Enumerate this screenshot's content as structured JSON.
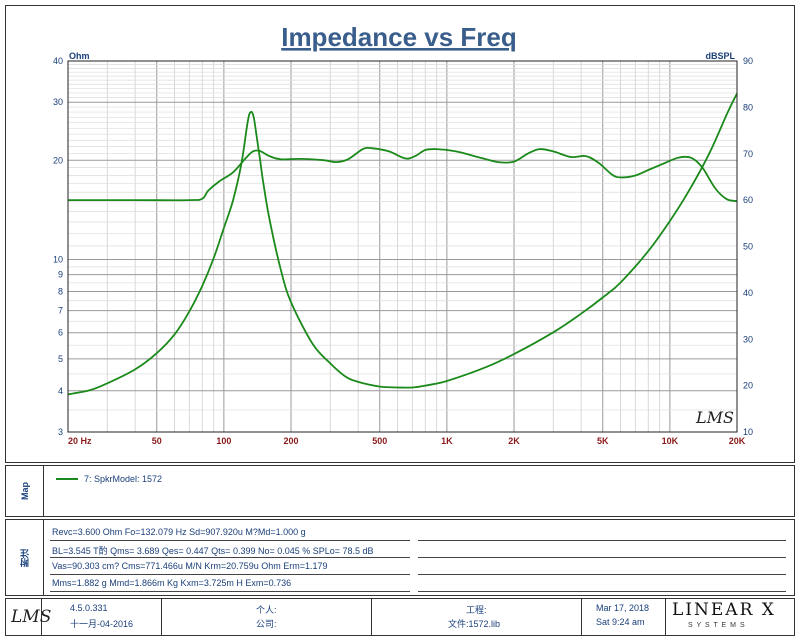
{
  "chart_data": {
    "type": "line",
    "title": "Impedance vs Freq",
    "left_unit": "Ohm",
    "right_unit": "dBSPL",
    "x_scale": "log",
    "xlim": [
      20,
      20000
    ],
    "left_scale": "log",
    "left_ylim": [
      3,
      40
    ],
    "right_ylim": [
      10,
      90
    ],
    "x_ticks": [
      {
        "v": 20,
        "label": "20  Hz"
      },
      {
        "v": 50,
        "label": "50"
      },
      {
        "v": 100,
        "label": "100"
      },
      {
        "v": 200,
        "label": "200"
      },
      {
        "v": 500,
        "label": "500"
      },
      {
        "v": 1000,
        "label": "1K"
      },
      {
        "v": 2000,
        "label": "2K"
      },
      {
        "v": 5000,
        "label": "5K"
      },
      {
        "v": 10000,
        "label": "10K"
      },
      {
        "v": 20000,
        "label": "20K"
      }
    ],
    "left_ticks": [
      {
        "v": 40,
        "label": "40"
      },
      {
        "v": 30,
        "label": "30"
      },
      {
        "v": 20,
        "label": "20"
      },
      {
        "v": 10,
        "label": "10"
      },
      {
        "v": 9,
        "label": "9"
      },
      {
        "v": 8,
        "label": "8"
      },
      {
        "v": 7,
        "label": "7"
      },
      {
        "v": 6,
        "label": "6"
      },
      {
        "v": 5,
        "label": "5"
      },
      {
        "v": 4,
        "label": "4"
      },
      {
        "v": 3,
        "label": "3"
      }
    ],
    "right_ticks": [
      {
        "v": 90,
        "label": "90"
      },
      {
        "v": 80,
        "label": "80"
      },
      {
        "v": 70,
        "label": "70"
      },
      {
        "v": 60,
        "label": "60"
      },
      {
        "v": 50,
        "label": "50"
      },
      {
        "v": 40,
        "label": "40"
      },
      {
        "v": 30,
        "label": "30"
      },
      {
        "v": 20,
        "label": "20"
      },
      {
        "v": 10,
        "label": "10"
      }
    ],
    "grid": true,
    "watermark": "LMS",
    "series": [
      {
        "axis": "right",
        "color": "#1b8a1b",
        "points": [
          [
            20,
            60
          ],
          [
            40,
            60
          ],
          [
            70,
            60
          ],
          [
            80,
            60.3
          ],
          [
            85,
            62
          ],
          [
            95,
            64
          ],
          [
            110,
            66
          ],
          [
            125,
            69
          ],
          [
            135,
            70.5
          ],
          [
            145,
            70.6
          ],
          [
            160,
            69.5
          ],
          [
            180,
            68.8
          ],
          [
            220,
            68.9
          ],
          [
            280,
            68.6
          ],
          [
            320,
            68.2
          ],
          [
            360,
            68.8
          ],
          [
            420,
            71
          ],
          [
            460,
            71.2
          ],
          [
            550,
            70.5
          ],
          [
            650,
            69
          ],
          [
            720,
            69.5
          ],
          [
            800,
            70.8
          ],
          [
            900,
            71
          ],
          [
            1100,
            70.5
          ],
          [
            1400,
            69.2
          ],
          [
            1700,
            68.2
          ],
          [
            2000,
            68.3
          ],
          [
            2300,
            70
          ],
          [
            2600,
            71
          ],
          [
            3000,
            70.5
          ],
          [
            3600,
            69.3
          ],
          [
            4200,
            69.5
          ],
          [
            4800,
            68
          ],
          [
            5500,
            65.5
          ],
          [
            6000,
            64.9
          ],
          [
            7000,
            65.3
          ],
          [
            8000,
            66.5
          ],
          [
            9500,
            68
          ],
          [
            11000,
            69.2
          ],
          [
            12500,
            69.1
          ],
          [
            14000,
            67
          ],
          [
            16000,
            62.5
          ],
          [
            18000,
            60.2
          ],
          [
            20000,
            59.8
          ]
        ]
      },
      {
        "axis": "right",
        "color": "#1b8a1b",
        "points": [
          [
            20,
            18.1
          ],
          [
            25,
            19
          ],
          [
            30,
            20.5
          ],
          [
            40,
            23.5
          ],
          [
            50,
            27
          ],
          [
            60,
            31
          ],
          [
            70,
            36
          ],
          [
            80,
            41.5
          ],
          [
            90,
            47.5
          ],
          [
            100,
            54
          ],
          [
            110,
            60
          ],
          [
            120,
            68
          ],
          [
            128,
            77
          ],
          [
            132,
            79
          ],
          [
            136,
            78
          ],
          [
            140,
            74
          ],
          [
            145,
            69
          ],
          [
            150,
            64
          ],
          [
            160,
            56
          ],
          [
            180,
            45
          ],
          [
            200,
            38
          ],
          [
            250,
            29
          ],
          [
            300,
            24.8
          ],
          [
            350,
            22
          ],
          [
            400,
            20.8
          ],
          [
            500,
            19.8
          ],
          [
            600,
            19.6
          ],
          [
            700,
            19.6
          ],
          [
            800,
            20
          ],
          [
            1000,
            21
          ],
          [
            1500,
            24
          ],
          [
            2000,
            26.8
          ],
          [
            3000,
            31.5
          ],
          [
            4000,
            35.5
          ],
          [
            5000,
            39
          ],
          [
            6000,
            42.2
          ],
          [
            8000,
            49
          ],
          [
            10000,
            55.5
          ],
          [
            12000,
            61.5
          ],
          [
            15000,
            70
          ],
          [
            18000,
            78.5
          ],
          [
            20000,
            83
          ]
        ]
      }
    ]
  },
  "legend": {
    "side_label": "Map",
    "item": "7: SpkrModel: 1572"
  },
  "params": {
    "side_label": "附注",
    "rows": [
      "Revc=3.600 Ohm  Fo=132.079 Hz  Sd=907.920u M?Md=1.000 g",
      "BL=3.545 T酌  Qms= 3.689  Qes= 0.447  Qts= 0.399  No= 0.045 %  SPLo= 78.5 dB",
      "Vas=90.303 cm? Cms=771.466u M/N  Krm=20.759u Ohm  Erm=1.179",
      "Mms=1.882 g  Mmd=1.866m Kg  Kxm=3.725m H  Exm=0.736"
    ]
  },
  "footer": {
    "logo": "LMS",
    "version": "4.5.0.331",
    "version_date": "十一月-04-2016",
    "person_label": "个人:",
    "company_label": "公司:",
    "project_label": "工程:",
    "file_label": "文件:1572.lib",
    "date": "Mar 17, 2018",
    "time": "Sat  9:24 am",
    "brand": "LINEAR X",
    "brand_sub": "S Y S T E M S"
  }
}
